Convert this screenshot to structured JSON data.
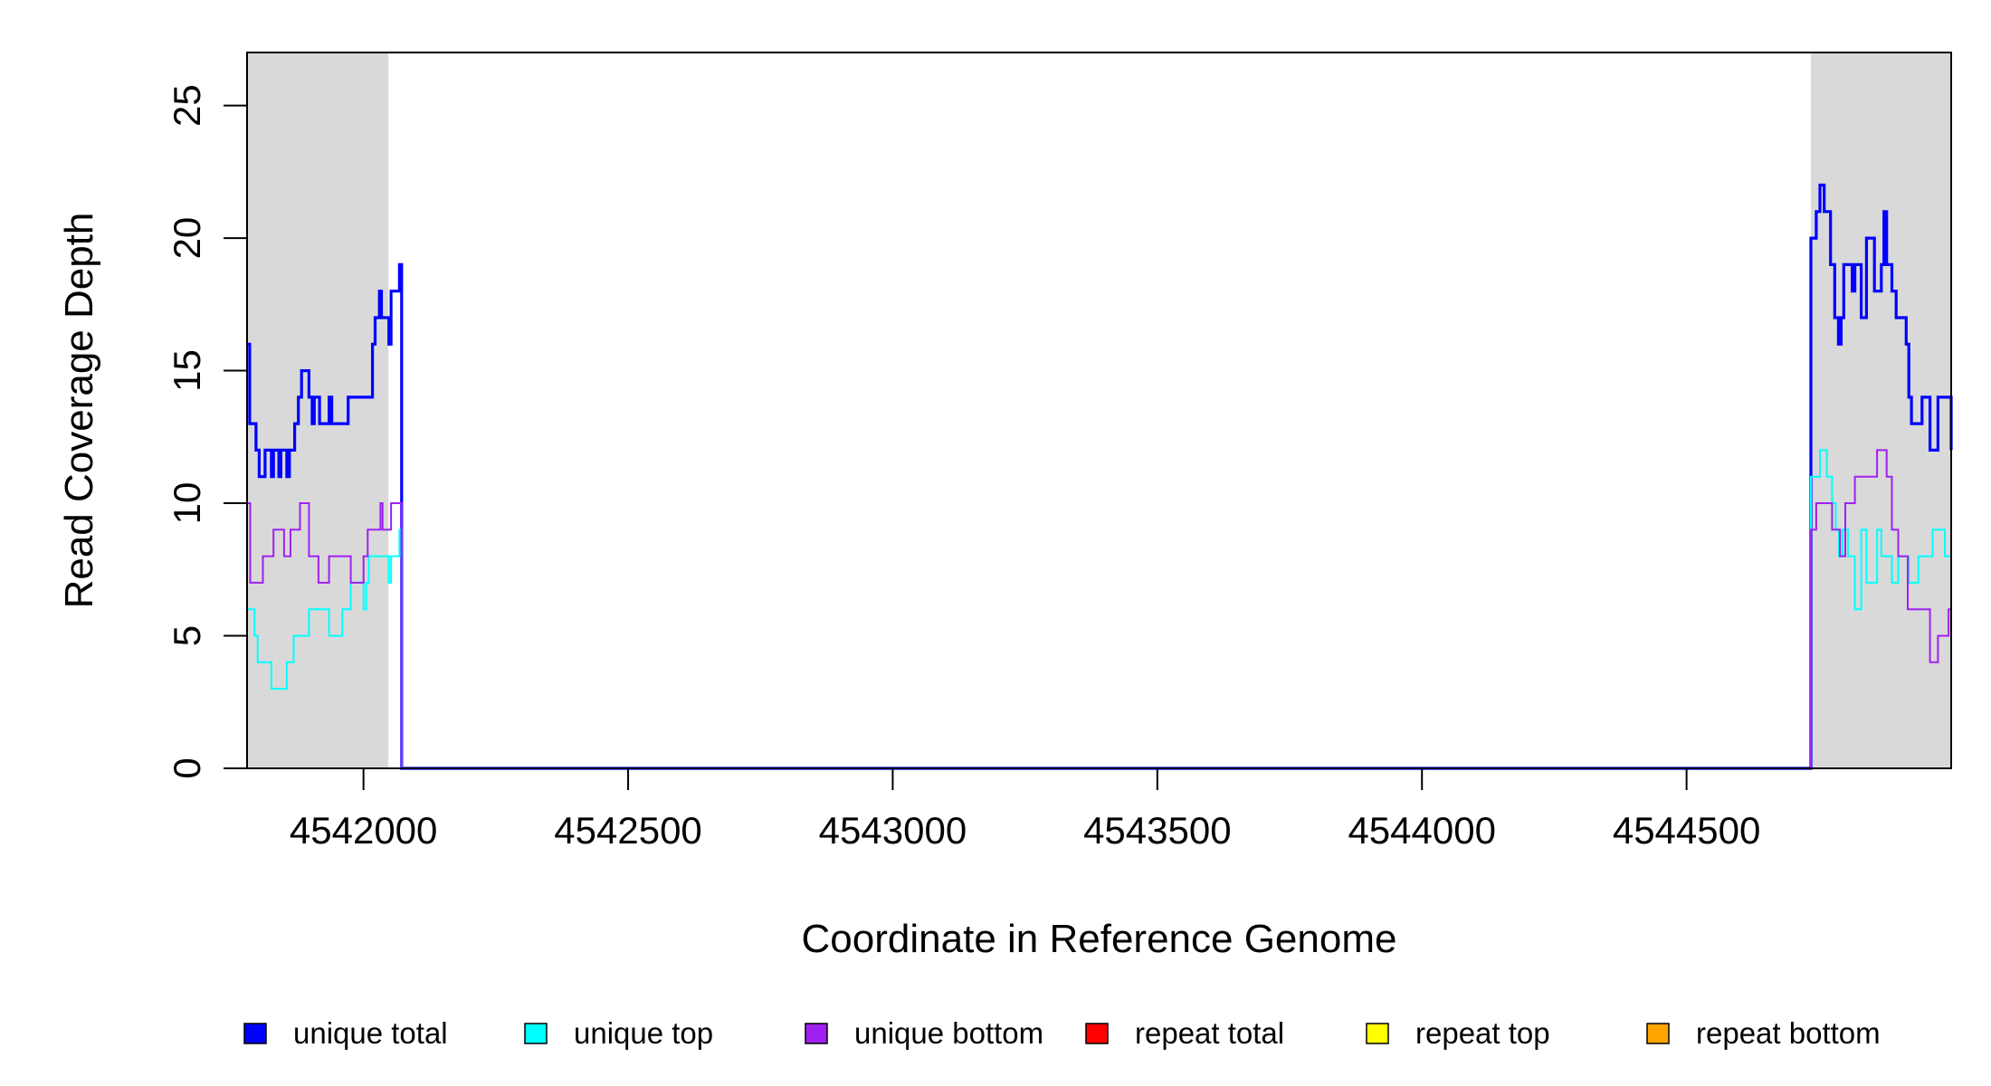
{
  "chart_data": {
    "type": "line",
    "step": true,
    "xlabel": "Coordinate in Reference Genome",
    "ylabel": "Read Coverage Depth",
    "xlim": [
      4541780,
      4545000
    ],
    "ylim": [
      0,
      27
    ],
    "x_ticks": [
      4542000,
      4542500,
      4543000,
      4543500,
      4544000,
      4544500
    ],
    "x_tick_labels": [
      "4542000",
      "4542500",
      "4543000",
      "4543500",
      "4544000",
      "4544500"
    ],
    "y_ticks": [
      0,
      5,
      10,
      15,
      20,
      25
    ],
    "y_tick_labels": [
      "0",
      "5",
      "10",
      "15",
      "20",
      "25"
    ],
    "shaded_regions": [
      {
        "x": [
          4541780,
          4542047
        ],
        "color": "#d9d9d9"
      },
      {
        "x": [
          4544735,
          4545000
        ],
        "color": "#d9d9d9"
      }
    ],
    "legend_position": "bottom",
    "series": [
      {
        "name": "unique total",
        "color": "#0000ff",
        "points": [
          [
            4541780,
            16
          ],
          [
            4541785,
            13
          ],
          [
            4541797,
            12
          ],
          [
            4541803,
            11
          ],
          [
            4541814,
            12
          ],
          [
            4541826,
            11
          ],
          [
            4541830,
            12
          ],
          [
            4541840,
            11
          ],
          [
            4541844,
            12
          ],
          [
            4541855,
            11
          ],
          [
            4541860,
            12
          ],
          [
            4541870,
            13
          ],
          [
            4541877,
            14
          ],
          [
            4541883,
            15
          ],
          [
            4541897,
            14
          ],
          [
            4541903,
            13
          ],
          [
            4541907,
            14
          ],
          [
            4541917,
            13
          ],
          [
            4541935,
            14
          ],
          [
            4541940,
            13
          ],
          [
            4541971,
            14
          ],
          [
            4542017,
            16
          ],
          [
            4542022,
            17
          ],
          [
            4542030,
            18
          ],
          [
            4542034,
            17
          ],
          [
            4542048,
            16
          ],
          [
            4542052,
            18
          ],
          [
            4542068,
            19
          ],
          [
            4542072,
            0
          ],
          [
            4544730,
            0
          ],
          [
            4544735,
            20
          ],
          [
            4544745,
            21
          ],
          [
            4544752,
            22
          ],
          [
            4544760,
            21
          ],
          [
            4544772,
            19
          ],
          [
            4544780,
            17
          ],
          [
            4544787,
            16
          ],
          [
            4544792,
            17
          ],
          [
            4544797,
            19
          ],
          [
            4544813,
            18
          ],
          [
            4544818,
            19
          ],
          [
            4544830,
            17
          ],
          [
            4544840,
            20
          ],
          [
            4544855,
            18
          ],
          [
            4544868,
            19
          ],
          [
            4544873,
            21
          ],
          [
            4544878,
            19
          ],
          [
            4544888,
            18
          ],
          [
            4544896,
            17
          ],
          [
            4544915,
            16
          ],
          [
            4544920,
            14
          ],
          [
            4544925,
            13
          ],
          [
            4544945,
            14
          ],
          [
            4544960,
            12
          ],
          [
            4544975,
            14
          ],
          [
            4545000,
            12
          ]
        ]
      },
      {
        "name": "unique top",
        "color": "#00ffff",
        "points": [
          [
            4541780,
            6
          ],
          [
            4541794,
            5
          ],
          [
            4541800,
            4
          ],
          [
            4541826,
            3
          ],
          [
            4541855,
            4
          ],
          [
            4541868,
            5
          ],
          [
            4541897,
            6
          ],
          [
            4541935,
            5
          ],
          [
            4541960,
            6
          ],
          [
            4541976,
            7
          ],
          [
            4542000,
            6
          ],
          [
            4542005,
            7
          ],
          [
            4542010,
            8
          ],
          [
            4542048,
            7
          ],
          [
            4542052,
            8
          ],
          [
            4542068,
            9
          ],
          [
            4542072,
            0
          ],
          [
            4544730,
            0
          ],
          [
            4544735,
            11
          ],
          [
            4544752,
            12
          ],
          [
            4544765,
            11
          ],
          [
            4544775,
            10
          ],
          [
            4544782,
            9
          ],
          [
            4544788,
            8
          ],
          [
            4544795,
            9
          ],
          [
            4544805,
            8
          ],
          [
            4544818,
            6
          ],
          [
            4544830,
            9
          ],
          [
            4544840,
            7
          ],
          [
            4544860,
            9
          ],
          [
            4544868,
            8
          ],
          [
            4544888,
            7
          ],
          [
            4544900,
            8
          ],
          [
            4544920,
            7
          ],
          [
            4544938,
            8
          ],
          [
            4544965,
            9
          ],
          [
            4544988,
            8
          ],
          [
            4545000,
            7
          ]
        ]
      },
      {
        "name": "unique bottom",
        "color": "#a020f0",
        "points": [
          [
            4541780,
            10
          ],
          [
            4541786,
            7
          ],
          [
            4541810,
            8
          ],
          [
            4541830,
            9
          ],
          [
            4541850,
            8
          ],
          [
            4541862,
            9
          ],
          [
            4541880,
            10
          ],
          [
            4541897,
            8
          ],
          [
            4541915,
            7
          ],
          [
            4541935,
            8
          ],
          [
            4541976,
            7
          ],
          [
            4542000,
            8
          ],
          [
            4542008,
            9
          ],
          [
            4542032,
            10
          ],
          [
            4542036,
            9
          ],
          [
            4542052,
            10
          ],
          [
            4542072,
            0
          ],
          [
            4544730,
            0
          ],
          [
            4544735,
            9
          ],
          [
            4544745,
            10
          ],
          [
            4544775,
            9
          ],
          [
            4544790,
            8
          ],
          [
            4544800,
            10
          ],
          [
            4544818,
            11
          ],
          [
            4544860,
            12
          ],
          [
            4544878,
            11
          ],
          [
            4544888,
            9
          ],
          [
            4544900,
            8
          ],
          [
            4544918,
            6
          ],
          [
            4544960,
            4
          ],
          [
            4544975,
            5
          ],
          [
            4544995,
            6
          ],
          [
            4545000,
            6
          ]
        ]
      },
      {
        "name": "repeat total",
        "color": "#ff0000",
        "points": [
          [
            4541780,
            0
          ],
          [
            4545000,
            0
          ]
        ]
      },
      {
        "name": "repeat top",
        "color": "#ffff00",
        "points": [
          [
            4541780,
            0
          ],
          [
            4545000,
            0
          ]
        ]
      },
      {
        "name": "repeat bottom",
        "color": "#ffa500",
        "points": [
          [
            4541780,
            0
          ],
          [
            4545000,
            0
          ]
        ]
      }
    ]
  }
}
